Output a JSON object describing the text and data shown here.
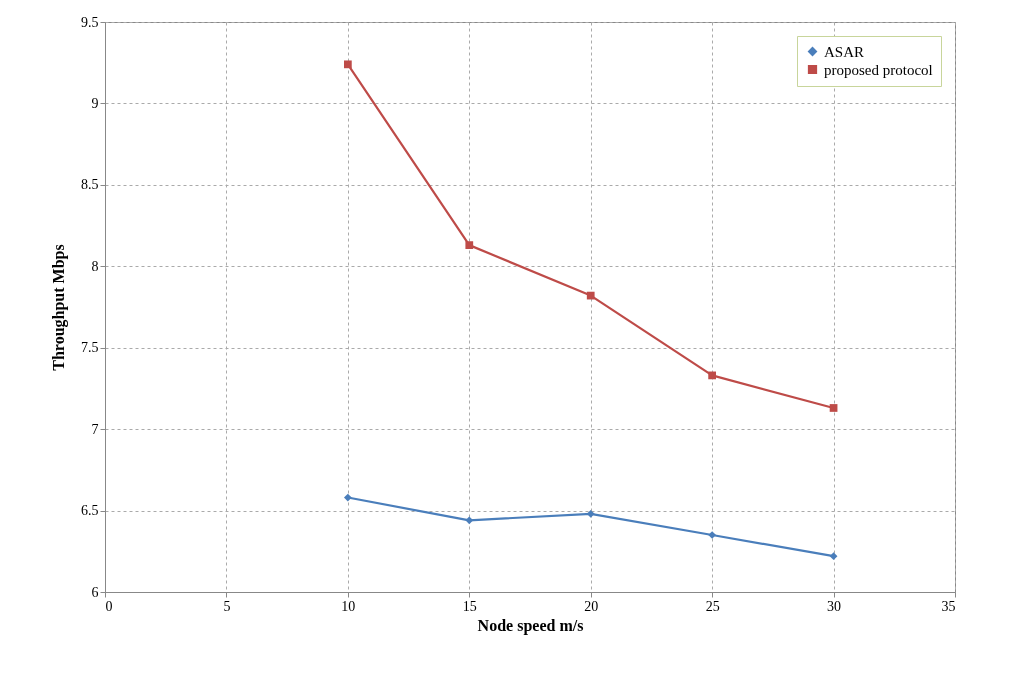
{
  "chart_data": {
    "type": "line",
    "xlabel": "Node speed m/s",
    "ylabel": "Throughput Mbps",
    "x": [
      10,
      15,
      20,
      25,
      30
    ],
    "series": [
      {
        "name": "ASAR",
        "color": "#4a7ebb",
        "marker": "diamond",
        "values": [
          6.58,
          6.44,
          6.48,
          6.35,
          6.22
        ]
      },
      {
        "name": "proposed protocol",
        "color": "#be4b48",
        "marker": "square",
        "values": [
          9.24,
          8.13,
          7.82,
          7.33,
          7.13
        ]
      }
    ],
    "xlim": [
      0,
      35
    ],
    "xticks": [
      0,
      5,
      10,
      15,
      20,
      25,
      30,
      35
    ],
    "ylim": [
      6,
      9.5
    ],
    "yticks": [
      6,
      6.5,
      7,
      7.5,
      8,
      8.5,
      9,
      9.5
    ],
    "grid": true,
    "legend": "top right",
    "line_style": "solid"
  }
}
